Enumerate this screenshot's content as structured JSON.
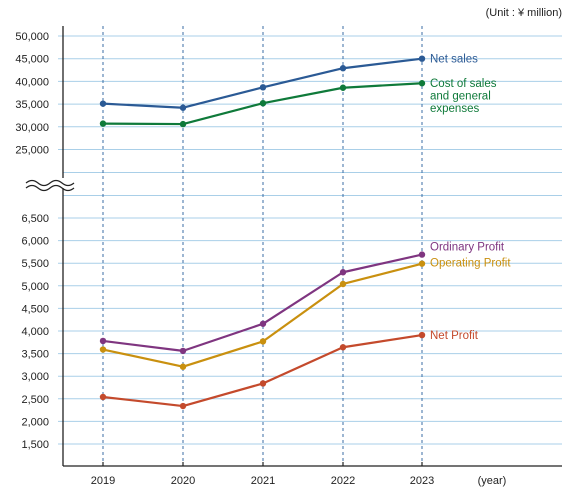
{
  "chart_data": {
    "type": "line",
    "unit_label": "(Unit : ¥ million)",
    "x_unit_label": "(year)",
    "categories": [
      "2019",
      "2020",
      "2021",
      "2022",
      "2023"
    ],
    "upper_panel": {
      "y_ticks": [
        "50,000",
        "45,000",
        "40,000",
        "35,000",
        "30,000",
        "25,000"
      ],
      "ylim": [
        22500,
        52500
      ],
      "series": [
        {
          "name": "Net sales",
          "color": "#2b5a95",
          "values": [
            35100,
            34200,
            38700,
            42900,
            45000
          ]
        },
        {
          "name": "Cost of sales and general expenses",
          "label_lines": [
            "Cost of sales",
            "and general",
            "expenses"
          ],
          "color": "#0f7a3a",
          "values": [
            30700,
            30600,
            35200,
            38600,
            39600
          ]
        }
      ]
    },
    "lower_panel": {
      "y_ticks": [
        "6,500",
        "6,000",
        "5,500",
        "5,000",
        "4,500",
        "4,000",
        "3,500",
        "3,000",
        "2,500",
        "2,000",
        "1,500"
      ],
      "ylim": [
        1000,
        7000
      ],
      "series": [
        {
          "name": "Ordinary Profit",
          "color": "#7f3580",
          "values": [
            3780,
            3560,
            4160,
            5300,
            5690
          ]
        },
        {
          "name": "Operating Profit",
          "color": "#c9900f",
          "values": [
            3590,
            3210,
            3770,
            5040,
            5490
          ]
        },
        {
          "name": "Net Profit",
          "color": "#c44a2c",
          "values": [
            2540,
            2340,
            2840,
            3640,
            3910
          ]
        }
      ]
    },
    "axis_break": true,
    "grid": true
  }
}
